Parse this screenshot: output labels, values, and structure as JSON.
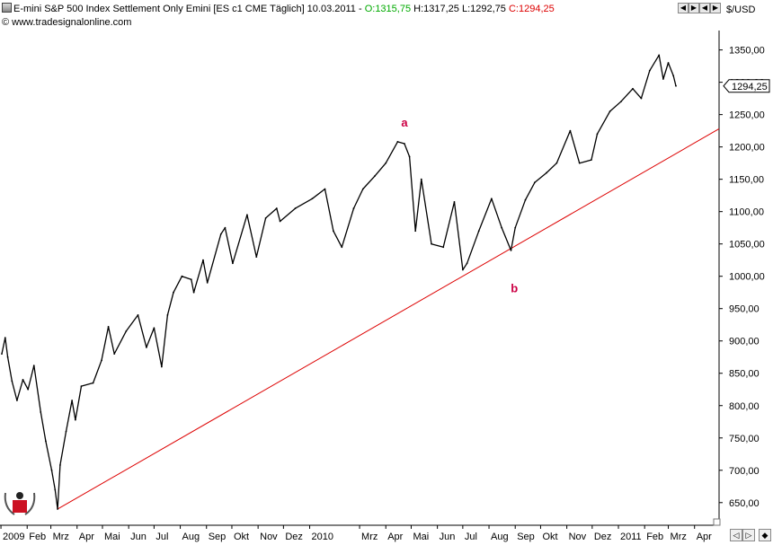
{
  "header": {
    "instrument": "E-mini S&P 500 Index Settlement Only Emini [ES c1 CME  Täglich] 10.03.2011",
    "open": "O:1315,75",
    "high": "H:1317,25",
    "low": "L:1292,75",
    "close": "C:1294,25",
    "website": "© www.tradesignalonline.com",
    "currency": "$/USD"
  },
  "colors": {
    "open": "#00aa00",
    "close": "#dd0000",
    "trendline": "#dd0000",
    "annotation": "#cc0044",
    "price": "#000000"
  },
  "chart_data": {
    "type": "line",
    "title": "E-mini S&P 500 Index Settlement Only Emini [ES c1 CME  Täglich] 10.03.2011",
    "ylabel": "$/USD",
    "ylim": [
      615,
      1380
    ],
    "xlim": [
      "2009-01-02",
      "2011-04-30"
    ],
    "yticks": [
      "650,00",
      "700,00",
      "750,00",
      "800,00",
      "850,00",
      "900,00",
      "950,00",
      "1000,00",
      "1050,00",
      "1100,00",
      "1150,00",
      "1200,00",
      "1250,00",
      "1300,00",
      "1350,00"
    ],
    "ytick_values": [
      650,
      700,
      750,
      800,
      850,
      900,
      950,
      1000,
      1050,
      1100,
      1150,
      1200,
      1250,
      1300,
      1350
    ],
    "xticks": [
      {
        "label": "2009",
        "date": "2009-01-01"
      },
      {
        "label": "Feb",
        "date": "2009-02-01"
      },
      {
        "label": "Mrz",
        "date": "2009-03-01"
      },
      {
        "label": "Apr",
        "date": "2009-04-01"
      },
      {
        "label": "Mai",
        "date": "2009-05-01"
      },
      {
        "label": "Jun",
        "date": "2009-06-01"
      },
      {
        "label": "Jul",
        "date": "2009-07-01"
      },
      {
        "label": "Aug",
        "date": "2009-08-01"
      },
      {
        "label": "Sep",
        "date": "2009-09-01"
      },
      {
        "label": "Okt",
        "date": "2009-10-01"
      },
      {
        "label": "Nov",
        "date": "2009-11-01"
      },
      {
        "label": "Dez",
        "date": "2009-12-01"
      },
      {
        "label": "2010",
        "date": "2010-01-01"
      },
      {
        "label": "Mrz",
        "date": "2010-03-01"
      },
      {
        "label": "Apr",
        "date": "2010-04-01"
      },
      {
        "label": "Mai",
        "date": "2010-05-01"
      },
      {
        "label": "Jun",
        "date": "2010-06-01"
      },
      {
        "label": "Jul",
        "date": "2010-07-01"
      },
      {
        "label": "Aug",
        "date": "2010-08-01"
      },
      {
        "label": "Sep",
        "date": "2010-09-01"
      },
      {
        "label": "Okt",
        "date": "2010-10-01"
      },
      {
        "label": "Nov",
        "date": "2010-11-01"
      },
      {
        "label": "Dez",
        "date": "2010-12-01"
      },
      {
        "label": "2011",
        "date": "2011-01-01"
      },
      {
        "label": "Feb",
        "date": "2011-02-01"
      },
      {
        "label": "Mrz",
        "date": "2011-03-01"
      },
      {
        "label": "Apr",
        "date": "2011-04-01"
      }
    ],
    "series": [
      {
        "values": [
          {
            "x": "2009-01-02",
            "y": 880
          },
          {
            "x": "2009-01-06",
            "y": 905
          },
          {
            "x": "2009-01-09",
            "y": 875
          },
          {
            "x": "2009-01-14",
            "y": 838
          },
          {
            "x": "2009-01-20",
            "y": 808
          },
          {
            "x": "2009-01-27",
            "y": 840
          },
          {
            "x": "2009-02-02",
            "y": 825
          },
          {
            "x": "2009-02-09",
            "y": 862
          },
          {
            "x": "2009-02-17",
            "y": 790
          },
          {
            "x": "2009-02-23",
            "y": 745
          },
          {
            "x": "2009-03-02",
            "y": 700
          },
          {
            "x": "2009-03-06",
            "y": 670
          },
          {
            "x": "2009-03-09",
            "y": 640
          },
          {
            "x": "2009-03-12",
            "y": 708
          },
          {
            "x": "2009-03-19",
            "y": 760
          },
          {
            "x": "2009-03-26",
            "y": 808
          },
          {
            "x": "2009-03-30",
            "y": 778
          },
          {
            "x": "2009-04-06",
            "y": 830
          },
          {
            "x": "2009-04-20",
            "y": 835
          },
          {
            "x": "2009-04-30",
            "y": 870
          },
          {
            "x": "2009-05-08",
            "y": 922
          },
          {
            "x": "2009-05-15",
            "y": 880
          },
          {
            "x": "2009-05-29",
            "y": 915
          },
          {
            "x": "2009-06-12",
            "y": 940
          },
          {
            "x": "2009-06-22",
            "y": 890
          },
          {
            "x": "2009-07-01",
            "y": 920
          },
          {
            "x": "2009-07-10",
            "y": 860
          },
          {
            "x": "2009-07-17",
            "y": 940
          },
          {
            "x": "2009-07-24",
            "y": 975
          },
          {
            "x": "2009-08-03",
            "y": 1000
          },
          {
            "x": "2009-08-14",
            "y": 995
          },
          {
            "x": "2009-08-17",
            "y": 975
          },
          {
            "x": "2009-08-28",
            "y": 1025
          },
          {
            "x": "2009-09-02",
            "y": 990
          },
          {
            "x": "2009-09-18",
            "y": 1065
          },
          {
            "x": "2009-09-23",
            "y": 1075
          },
          {
            "x": "2009-10-02",
            "y": 1020
          },
          {
            "x": "2009-10-19",
            "y": 1095
          },
          {
            "x": "2009-10-30",
            "y": 1030
          },
          {
            "x": "2009-11-10",
            "y": 1090
          },
          {
            "x": "2009-11-23",
            "y": 1105
          },
          {
            "x": "2009-11-27",
            "y": 1085
          },
          {
            "x": "2009-12-15",
            "y": 1105
          },
          {
            "x": "2010-01-04",
            "y": 1120
          },
          {
            "x": "2010-01-19",
            "y": 1135
          },
          {
            "x": "2010-01-29",
            "y": 1070
          },
          {
            "x": "2010-02-08",
            "y": 1045
          },
          {
            "x": "2010-02-22",
            "y": 1105
          },
          {
            "x": "2010-03-05",
            "y": 1135
          },
          {
            "x": "2010-03-19",
            "y": 1155
          },
          {
            "x": "2010-04-01",
            "y": 1175
          },
          {
            "x": "2010-04-15",
            "y": 1208
          },
          {
            "x": "2010-04-23",
            "y": 1205
          },
          {
            "x": "2010-04-29",
            "y": 1185
          },
          {
            "x": "2010-05-06",
            "y": 1070
          },
          {
            "x": "2010-05-13",
            "y": 1150
          },
          {
            "x": "2010-05-25",
            "y": 1050
          },
          {
            "x": "2010-06-08",
            "y": 1045
          },
          {
            "x": "2010-06-21",
            "y": 1115
          },
          {
            "x": "2010-07-01",
            "y": 1010
          },
          {
            "x": "2010-07-06",
            "y": 1020
          },
          {
            "x": "2010-07-20",
            "y": 1070
          },
          {
            "x": "2010-08-04",
            "y": 1120
          },
          {
            "x": "2010-08-16",
            "y": 1075
          },
          {
            "x": "2010-08-27",
            "y": 1040
          },
          {
            "x": "2010-09-01",
            "y": 1075
          },
          {
            "x": "2010-09-13",
            "y": 1118
          },
          {
            "x": "2010-09-24",
            "y": 1145
          },
          {
            "x": "2010-10-08",
            "y": 1160
          },
          {
            "x": "2010-10-20",
            "y": 1175
          },
          {
            "x": "2010-11-05",
            "y": 1225
          },
          {
            "x": "2010-11-16",
            "y": 1175
          },
          {
            "x": "2010-11-30",
            "y": 1180
          },
          {
            "x": "2010-12-07",
            "y": 1220
          },
          {
            "x": "2010-12-22",
            "y": 1255
          },
          {
            "x": "2011-01-04",
            "y": 1270
          },
          {
            "x": "2011-01-18",
            "y": 1290
          },
          {
            "x": "2011-01-28",
            "y": 1275
          },
          {
            "x": "2011-02-07",
            "y": 1318
          },
          {
            "x": "2011-02-18",
            "y": 1342
          },
          {
            "x": "2011-02-23",
            "y": 1305
          },
          {
            "x": "2011-03-01",
            "y": 1330
          },
          {
            "x": "2011-03-07",
            "y": 1310
          },
          {
            "x": "2011-03-10",
            "y": 1294.25
          }
        ]
      }
    ],
    "trendline": {
      "from": {
        "x": "2009-03-09",
        "y": 640
      },
      "to": {
        "x": "2011-04-30",
        "y": 1228
      }
    },
    "last_value_label": "1294,25",
    "last_value": 1294.25,
    "annotations": [
      {
        "text": "a",
        "x": "2010-04-23",
        "y": 1215
      },
      {
        "text": "b",
        "x": "2010-08-31",
        "y": 1000
      }
    ],
    "grid": false,
    "legend": "none"
  }
}
